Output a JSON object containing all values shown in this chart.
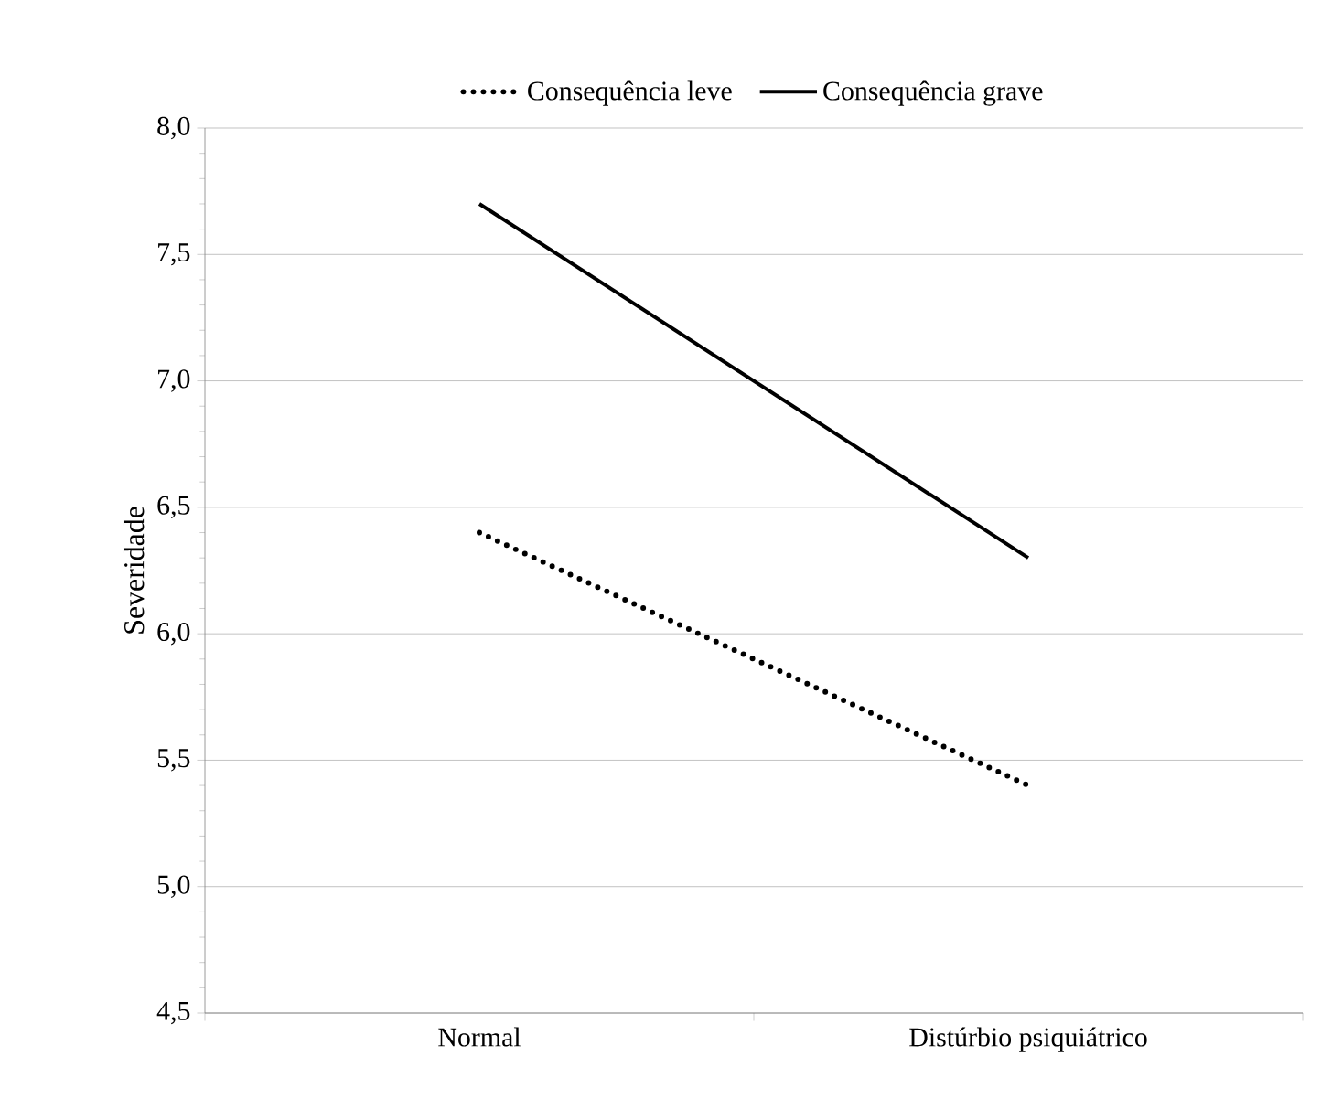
{
  "chart_data": {
    "type": "line",
    "ylabel": "Severidade",
    "categories": [
      "Normal",
      "Distúrbio psiquiátrico"
    ],
    "series": [
      {
        "name": "Consequência leve",
        "color": "#000000",
        "line_style": "dotted",
        "values": [
          6.4,
          5.4
        ]
      },
      {
        "name": "Consequência grave",
        "color": "#000000",
        "line_style": "solid",
        "values": [
          7.7,
          6.3
        ]
      }
    ],
    "ylim": [
      4.5,
      8.0
    ],
    "yticks": [
      {
        "value": 4.5,
        "label": "4,5"
      },
      {
        "value": 5.0,
        "label": "5,0"
      },
      {
        "value": 5.5,
        "label": "5,5"
      },
      {
        "value": 6.0,
        "label": "6,0"
      },
      {
        "value": 6.5,
        "label": "6,5"
      },
      {
        "value": 7.0,
        "label": "7,0"
      },
      {
        "value": 7.5,
        "label": "7,5"
      },
      {
        "value": 8.0,
        "label": "8,0"
      }
    ],
    "grid": "y",
    "legend": "top",
    "marker": "none"
  }
}
